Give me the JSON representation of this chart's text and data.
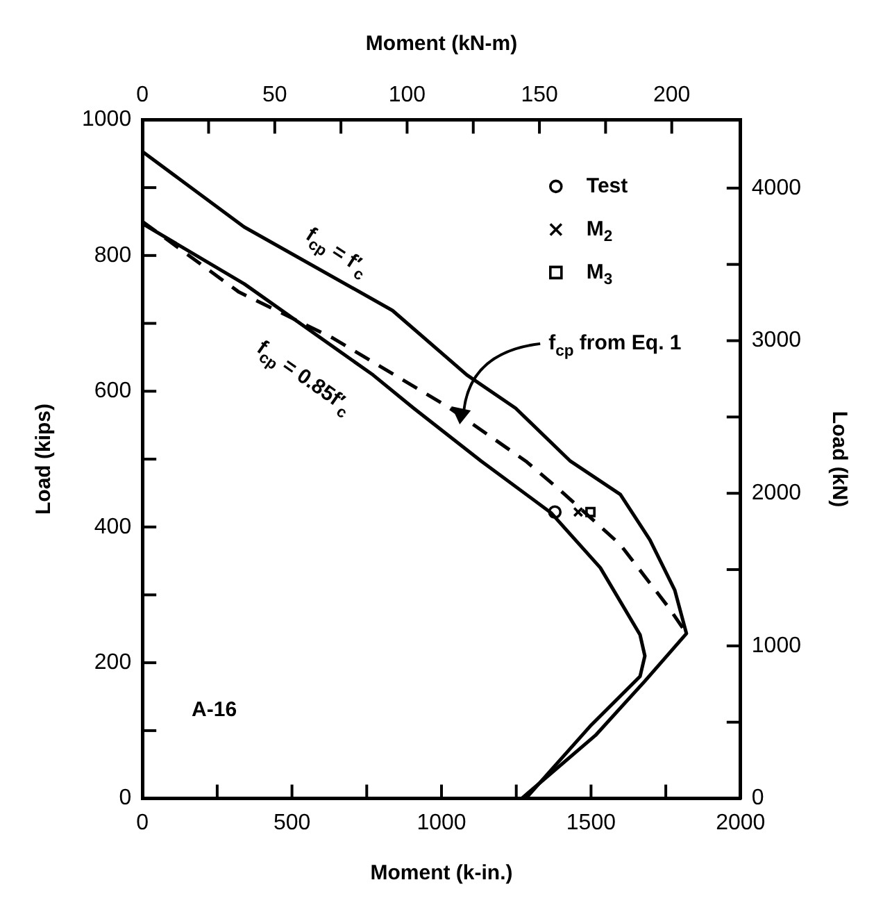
{
  "chart_data": {
    "type": "line",
    "xlabel": "Moment (k-in.)",
    "x2label": "Moment (kN-m)",
    "ylabel": "Load (kips)",
    "y2label": "Load (kN)",
    "xlim": [
      0,
      2000
    ],
    "xticks": [
      0,
      {
        "value": 250,
        "label": null
      },
      500,
      {
        "value": 750,
        "label": null
      },
      1000,
      {
        "value": 1250,
        "label": null
      },
      1500,
      {
        "value": 1750,
        "label": null
      },
      2000
    ],
    "x2lim": [
      0,
      226
    ],
    "x2ticks": [
      0,
      {
        "value": 25,
        "label": null
      },
      50,
      {
        "value": 75,
        "label": null
      },
      100,
      {
        "value": 125,
        "label": null
      },
      150,
      {
        "value": 175,
        "label": null
      },
      200
    ],
    "ylim": [
      0,
      1000
    ],
    "yticks": [
      0,
      {
        "value": 100,
        "label": null
      },
      200,
      {
        "value": 300,
        "label": null
      },
      400,
      {
        "value": 500,
        "label": null
      },
      600,
      {
        "value": 700,
        "label": null
      },
      800,
      {
        "value": 900,
        "label": null
      },
      1000
    ],
    "y2lim": [
      0,
      4448
    ],
    "y2ticks": [
      0,
      {
        "value": 500,
        "label": null
      },
      1000,
      {
        "value": 1500,
        "label": null
      },
      2000,
      {
        "value": 2500,
        "label": null
      },
      3000,
      {
        "value": 3500,
        "label": null
      },
      4000
    ],
    "grid": false,
    "legend": "top right",
    "series": [
      {
        "color": "#000000",
        "line_style": "solid",
        "marker": "none",
        "x": [
          0,
          340,
          836,
          1085,
          1248,
          1431,
          1598,
          1697,
          1780,
          1819,
          1680,
          1515,
          1268
        ],
        "values": [
          953,
          842,
          719,
          624,
          575,
          497,
          448,
          381,
          307,
          243,
          173,
          93,
          0
        ]
      },
      {
        "color": "#000000",
        "line_style": "solid",
        "marker": "none",
        "x": [
          0,
          341,
          771,
          907,
          1133,
          1366,
          1531,
          1664,
          1680,
          1664,
          1498,
          1282
        ],
        "values": [
          847,
          758,
          624,
          575,
          497,
          421,
          340,
          241,
          210,
          180,
          107,
          0
        ]
      },
      {
        "color": "#000000",
        "line_style": "dashed",
        "marker": "none",
        "x": [
          0,
          323,
          638,
          1018,
          1282,
          1397,
          1598,
          1762,
          1813
        ],
        "values": [
          850,
          746,
          678,
          578,
          497,
          454,
          374,
          280,
          247
        ]
      },
      {
        "type": "scatter",
        "name": "Test",
        "color": "#000000",
        "marker": "circle",
        "x": [
          1379
        ],
        "values": [
          422
        ]
      },
      {
        "type": "scatter",
        "name": "M$_{2}$",
        "color": "#000000",
        "marker": "cross",
        "x": [
          1457
        ],
        "values": [
          422
        ]
      },
      {
        "type": "scatter",
        "name": "M$_{3}$",
        "color": "#000000",
        "marker": "square",
        "x": [
          1498
        ],
        "values": [
          422
        ]
      }
    ],
    "annotations": [
      "f$_{cp}$ = f′$_{c}$",
      "f$_{cp}$ = 0.85f′$_{c}$",
      "f$_{cp}$ from Eq. 1",
      "A-16"
    ]
  }
}
